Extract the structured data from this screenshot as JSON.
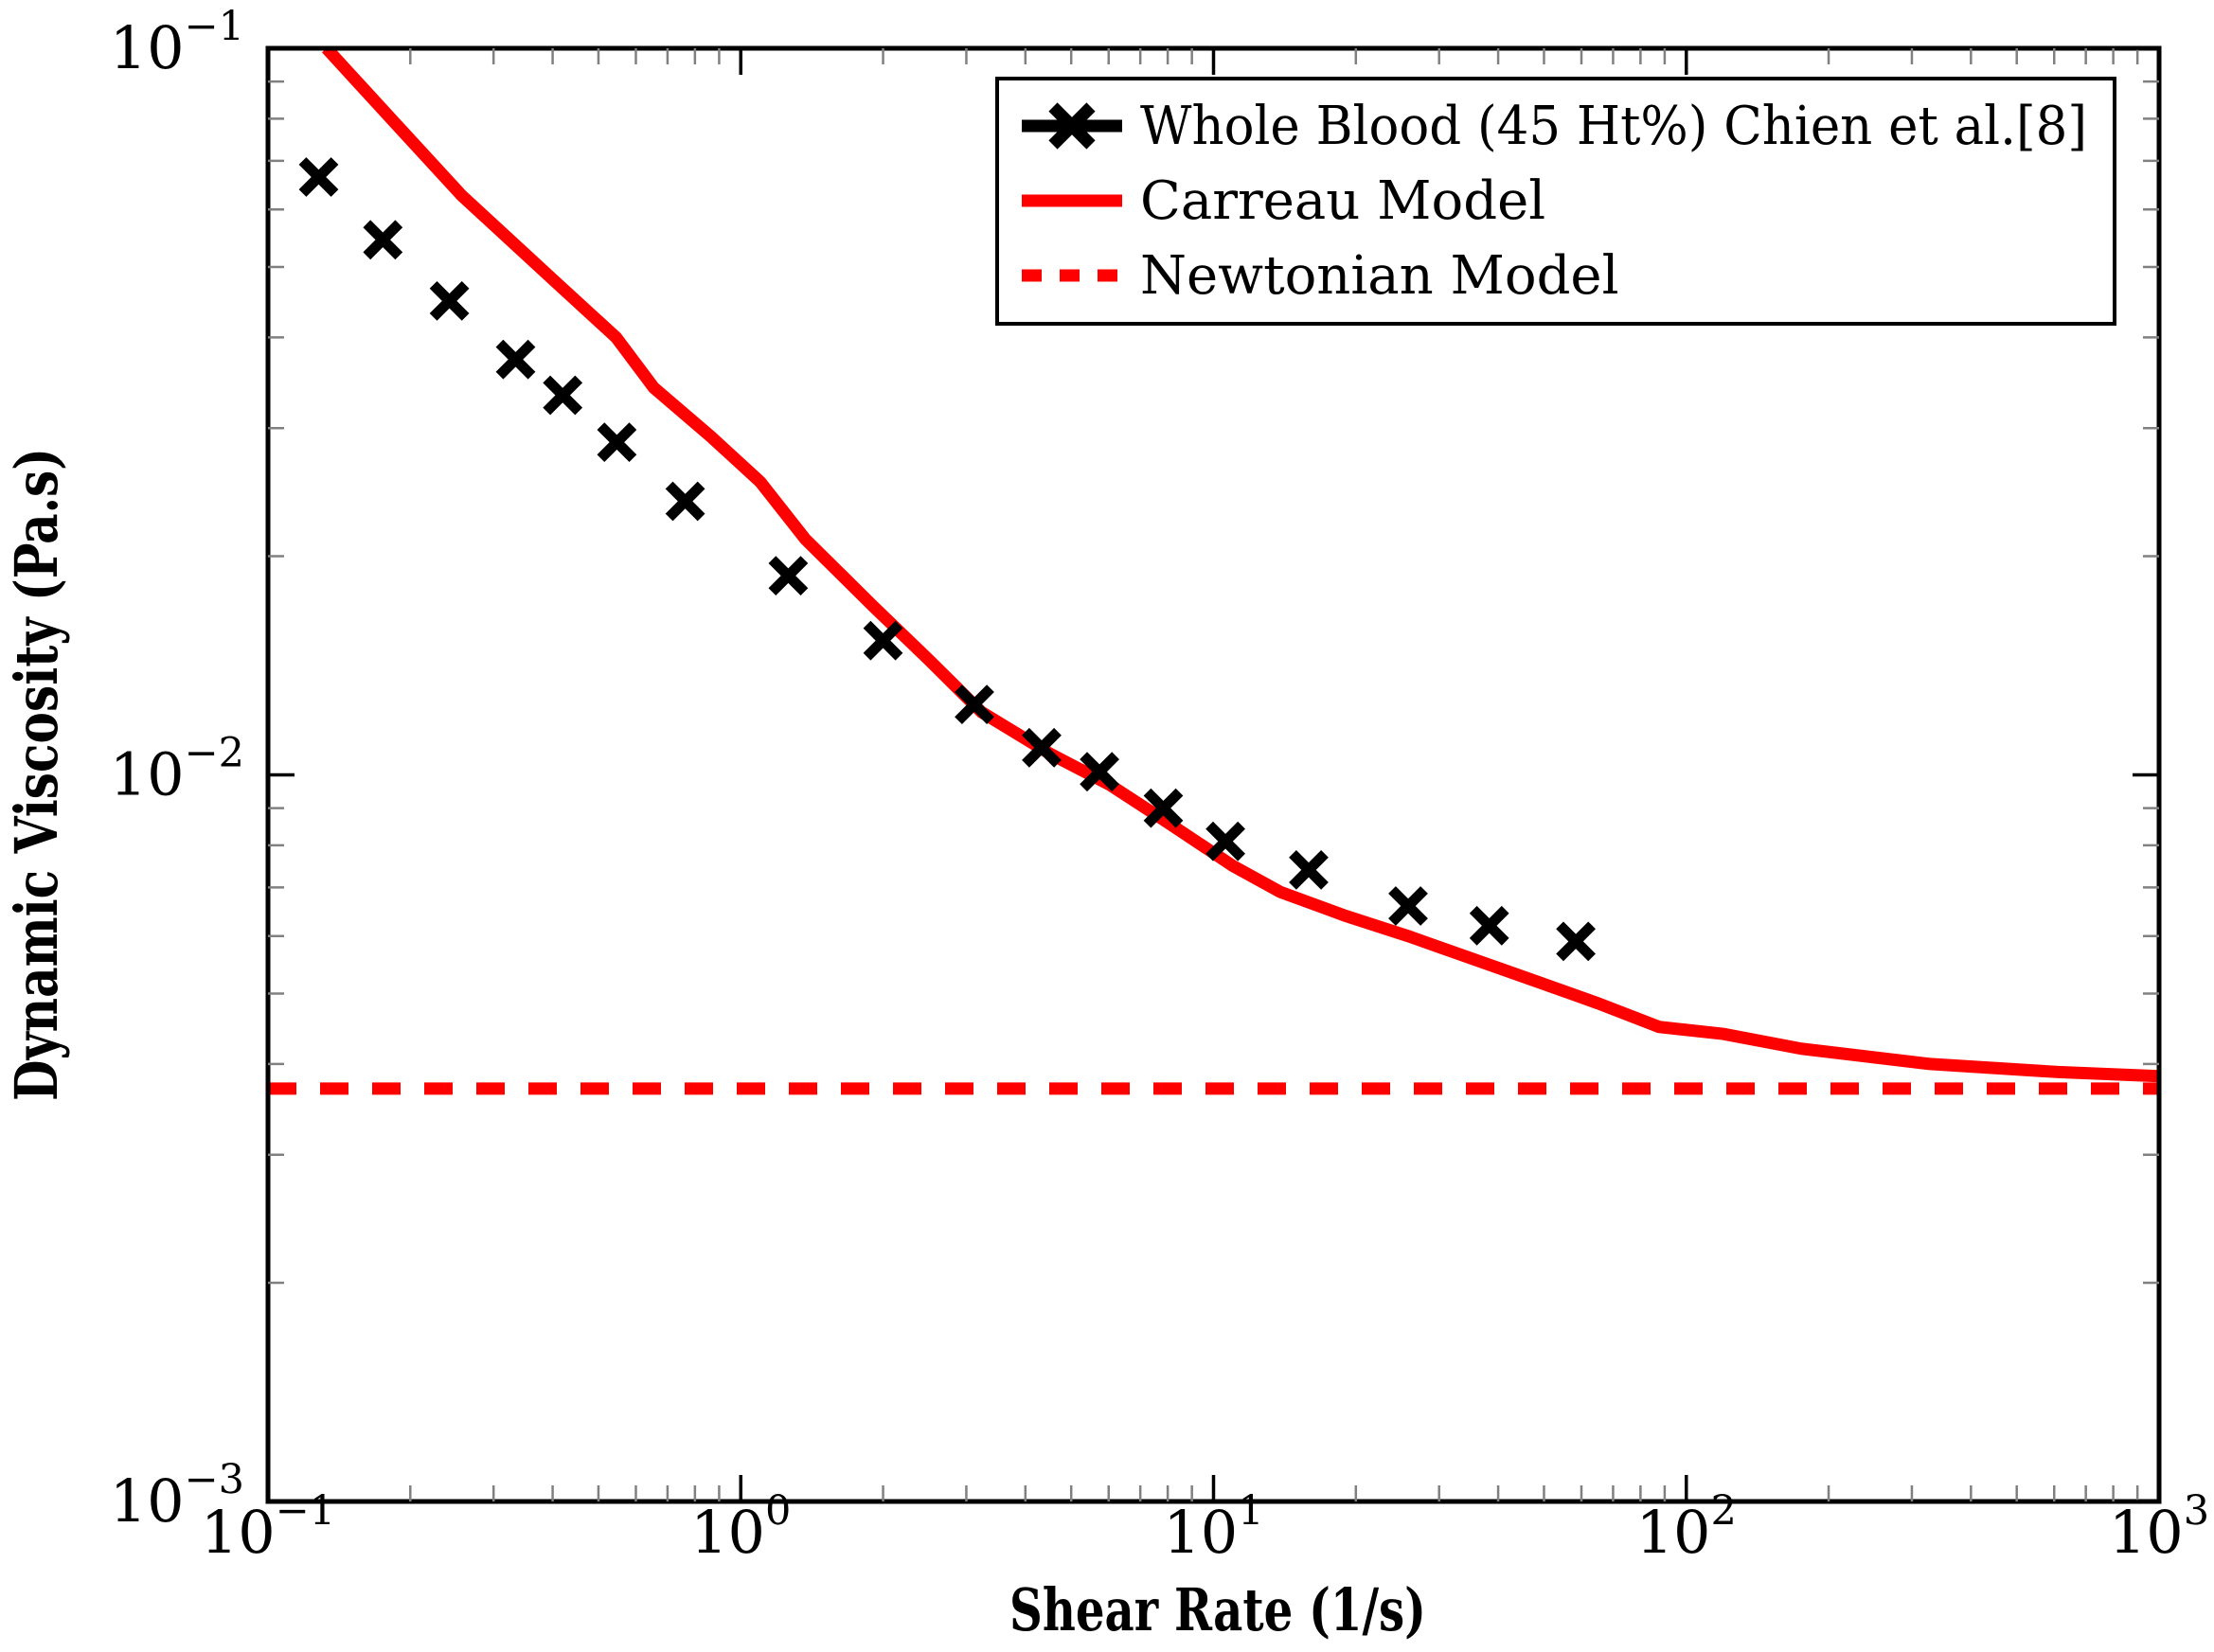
{
  "chart_data": {
    "type": "line+scatter",
    "title": "",
    "xlabel": "Shear Rate (1/s)",
    "ylabel": "Dynamic Viscosity (Pa.s)",
    "x_scale": "log",
    "y_scale": "log",
    "xlim": [
      0.1,
      1000
    ],
    "ylim": [
      0.001,
      0.1
    ],
    "x_tick_exponents": [
      -1,
      0,
      1,
      2,
      3
    ],
    "y_tick_exponents": [
      -1,
      -2,
      -3
    ],
    "grid": false,
    "legend_position": "top-right",
    "frame_color": "#000000",
    "minor_tick_color": "#808080",
    "major_tick_color": "#000000",
    "series": [
      {
        "name": "Whole Blood (45 Ht%) Chien et al.[8]",
        "type": "scatter",
        "marker": "x",
        "color": "#000000",
        "x": [
          0.128,
          0.175,
          0.242,
          0.334,
          0.42,
          0.547,
          0.763,
          1.26,
          2.0,
          3.12,
          4.33,
          5.74,
          7.83,
          10.6,
          15.9,
          25.8,
          38.3,
          58.4
        ],
        "y": [
          0.0665,
          0.0545,
          0.0449,
          0.0373,
          0.0333,
          0.0287,
          0.0238,
          0.0188,
          0.0153,
          0.0125,
          0.0109,
          0.0101,
          0.009,
          0.0081,
          0.0074,
          0.0066,
          0.0062,
          0.0059
        ]
      },
      {
        "name": "Carreau Model",
        "type": "line",
        "style": "solid",
        "color": "#ff0000",
        "x": [
          0.133,
          0.185,
          0.257,
          0.4,
          0.545,
          0.655,
          0.865,
          1.1,
          1.37,
          1.9,
          2.5,
          3.23,
          4.5,
          6.02,
          8.0,
          10.97,
          13.85,
          19.0,
          25.8,
          48.1,
          65.0,
          87.6,
          120,
          175,
          328,
          612,
          1000
        ],
        "y": [
          0.1,
          0.0791,
          0.0627,
          0.0481,
          0.04,
          0.0341,
          0.0292,
          0.0253,
          0.0211,
          0.0171,
          0.0144,
          0.0122,
          0.0107,
          0.0097,
          0.0086,
          0.0075,
          0.0069,
          0.0064,
          0.006,
          0.0052,
          0.00485,
          0.0045,
          0.0044,
          0.0042,
          0.004,
          0.0039,
          0.00385
        ]
      },
      {
        "name": "Newtonian Model",
        "type": "hline",
        "style": "dashed",
        "color": "#ff0000",
        "value": 0.0037
      }
    ]
  }
}
